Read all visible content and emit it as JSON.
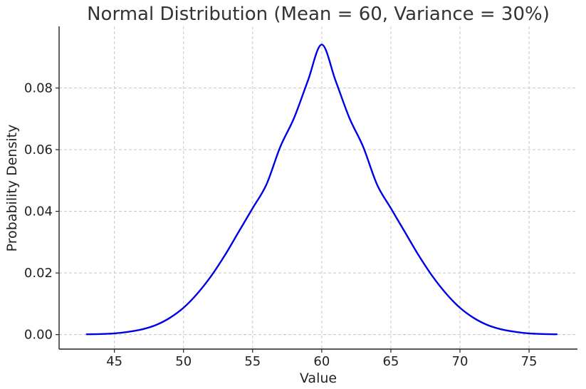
{
  "chart_data": {
    "type": "line",
    "title": "Normal Distribution (Mean = 60, Variance = 30%)",
    "xlabel": "Value",
    "ylabel": "Probability Density",
    "xlim": [
      41,
      78.5
    ],
    "ylim": [
      -0.0047,
      0.1
    ],
    "xticks": [
      45,
      50,
      55,
      60,
      65,
      70,
      75
    ],
    "xtick_labels": [
      "45",
      "50",
      "55",
      "60",
      "65",
      "70",
      "75"
    ],
    "yticks": [
      0.0,
      0.02,
      0.04,
      0.06,
      0.08
    ],
    "ytick_labels": [
      "0.00",
      "0.02",
      "0.04",
      "0.06",
      "0.08"
    ],
    "grid": true,
    "series": [
      {
        "color": "#0000e6",
        "x": [
          43,
          44,
          45,
          46,
          47,
          48,
          49,
          50,
          51,
          52,
          53,
          54,
          55,
          56,
          57,
          58,
          59,
          60,
          61,
          62,
          63,
          64,
          65,
          66,
          67,
          68,
          69,
          70,
          71,
          72,
          73,
          74,
          75,
          76,
          77
        ],
        "y": [
          0.0001,
          0.0002,
          0.0004,
          0.0009,
          0.0017,
          0.0031,
          0.0054,
          0.0087,
          0.0133,
          0.019,
          0.0258,
          0.0334,
          0.041,
          0.0487,
          0.0609,
          0.0703,
          0.0824,
          0.0941,
          0.0824,
          0.0703,
          0.0609,
          0.0487,
          0.041,
          0.0334,
          0.0258,
          0.019,
          0.0133,
          0.0087,
          0.0054,
          0.0031,
          0.0017,
          0.0009,
          0.0004,
          0.0002,
          0.0001
        ]
      }
    ]
  }
}
